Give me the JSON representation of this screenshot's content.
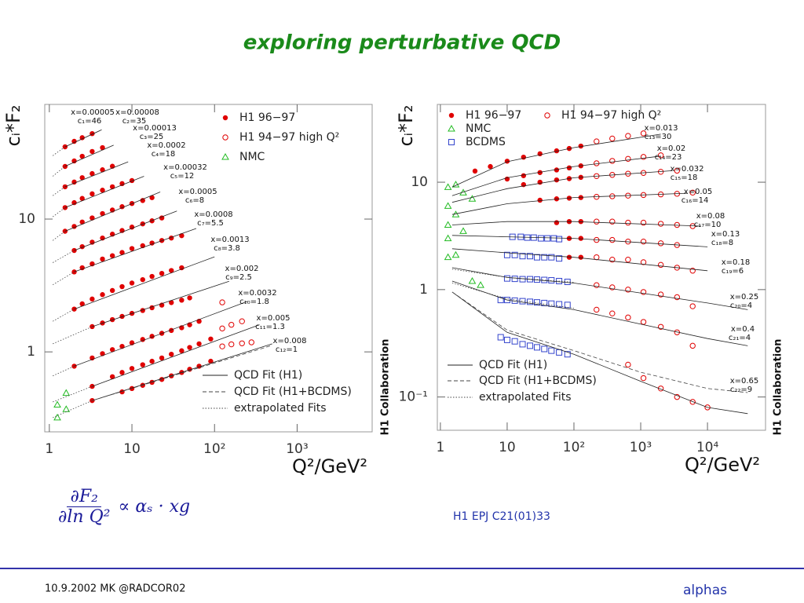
{
  "header": {
    "title": "exploring perturbative QCD"
  },
  "chart_data": [
    {
      "type": "scatter",
      "xscale": "log",
      "yscale": "log",
      "legend": "upper right",
      "ylabel": "cᵢ*F₂",
      "xlabel": "Q²/GeV²",
      "annotation": "H1 Collaboration",
      "xlim": [
        0.88,
        8100
      ],
      "ylim": [
        0.25,
        73
      ],
      "xticks": [
        1,
        10,
        {
          "value": 100,
          "label": "10²"
        },
        {
          "value": 1000,
          "label": "10³"
        }
      ],
      "yticks": [
        1,
        10
      ],
      "bin_labels": [
        [
          "x=0.00005",
          "c₁=46"
        ],
        [
          "x=0.00008",
          "c₂=35"
        ],
        [
          "x=0.00013",
          "c₃=25"
        ],
        [
          "x=0.0002",
          "c₄=18"
        ],
        [
          "x=0.00032",
          "c₅=12"
        ],
        [
          "x=0.0005",
          "c₆=8"
        ],
        [
          "x=0.0008",
          "c₇=5.5"
        ],
        [
          "x=0.0013",
          "c₈=3.8"
        ],
        [
          "x=0.002",
          "c₉=2.5"
        ],
        [
          "x=0.0032",
          "c₁₀=1.8"
        ],
        [
          "x=0.005",
          "c₁₁=1.3"
        ],
        [
          "x=0.008",
          "c₁₂=1"
        ]
      ],
      "series": [
        {
          "name": "H1 96−97",
          "marker": "filled-circle",
          "color": "#e00000",
          "x": [
            1.55,
            2,
            2.5,
            3.3,
            1.55,
            2,
            2.5,
            3.3,
            4.4,
            1.55,
            2,
            2.5,
            3.3,
            4.4,
            5.8,
            1.55,
            2,
            2.5,
            3.3,
            4.4,
            5.8,
            7.6,
            10,
            1.55,
            2,
            2.5,
            3.3,
            4.4,
            5.8,
            7.6,
            10,
            13.5,
            17.5,
            2,
            2.5,
            3.3,
            4.4,
            5.8,
            7.6,
            10,
            13.5,
            17.5,
            23,
            2,
            2.5,
            3.3,
            4.4,
            5.8,
            7.6,
            10,
            13.5,
            17.5,
            23,
            30,
            40,
            2,
            2.5,
            3.3,
            4.4,
            5.8,
            7.6,
            10,
            13.5,
            17.5,
            23,
            30,
            40,
            3.3,
            4.4,
            5.8,
            7.6,
            10,
            13.5,
            17.5,
            23,
            30,
            40,
            50,
            2,
            3.3,
            4.4,
            5.8,
            7.6,
            10,
            13.5,
            17.5,
            23,
            30,
            40,
            50,
            65,
            3.3,
            5.8,
            7.6,
            10,
            13.5,
            17.5,
            23,
            30,
            40,
            50,
            65,
            90,
            3.3,
            7.6,
            10,
            13.5,
            17.5,
            23,
            30,
            40,
            50,
            65,
            90
          ],
          "values": [
            35,
            38.5,
            41,
            44,
            24.9,
            27.4,
            29.7,
            32.3,
            34.5,
            17.5,
            19,
            20.5,
            22,
            23.5,
            25,
            12.2,
            13.3,
            14.3,
            15.5,
            16.5,
            17.5,
            18.5,
            19.5,
            8.1,
            8.8,
            9.5,
            10.2,
            11,
            11.7,
            12.4,
            13.1,
            13.8,
            14.5,
            5.8,
            6.2,
            6.7,
            7.2,
            7.7,
            8.2,
            8.7,
            9.2,
            9.7,
            10.2,
            4,
            4.3,
            4.6,
            5,
            5.3,
            5.6,
            6,
            6.3,
            6.6,
            6.9,
            7.2,
            7.5,
            2.1,
            2.3,
            2.5,
            2.7,
            2.9,
            3.1,
            3.3,
            3.5,
            3.7,
            3.9,
            4.1,
            4.3,
            1.55,
            1.65,
            1.75,
            1.85,
            1.95,
            2.05,
            2.15,
            2.25,
            2.35,
            2.45,
            2.55,
            0.78,
            0.9,
            0.97,
            1.04,
            1.1,
            1.17,
            1.24,
            1.31,
            1.38,
            1.45,
            1.52,
            1.6,
            1.7,
            0.55,
            0.65,
            0.7,
            0.75,
            0.8,
            0.85,
            0.9,
            0.96,
            1.02,
            1.08,
            1.15,
            1.25,
            0.43,
            0.5,
            0.53,
            0.56,
            0.59,
            0.62,
            0.66,
            0.7,
            0.74,
            0.78,
            0.85
          ]
        },
        {
          "name": "H1 94−97 high Q²",
          "marker": "open-circle",
          "color": "#e00000",
          "x": [
            124,
            124,
            160,
            215,
            124,
            160,
            215,
            280
          ],
          "values": [
            2.36,
            1.5,
            1.6,
            1.7,
            1.1,
            1.14,
            1.16,
            1.18
          ]
        },
        {
          "name": "NMC",
          "marker": "open-triangle",
          "color": "#22bb22",
          "x": [
            1.25,
            1.25,
            1.6,
            1.6
          ],
          "values": [
            0.4,
            0.32,
            0.37,
            0.49
          ]
        },
        {
          "name": "QCD Fit (H1)",
          "dash": "solid",
          "color": "#222222",
          "x": [
            1.55,
            4.3,
            null,
            1.55,
            6,
            null,
            1.55,
            9,
            null,
            1.55,
            14,
            null,
            1.55,
            22,
            null,
            2,
            35,
            null,
            2,
            60,
            null,
            2,
            100,
            null,
            3.3,
            150,
            null,
            2,
            250,
            null,
            3.3,
            350,
            null,
            3.3,
            500
          ],
          "values": [
            35,
            47,
            null,
            25,
            36,
            null,
            17.5,
            27,
            null,
            12.2,
            21,
            null,
            8.1,
            16,
            null,
            5.8,
            11.5,
            null,
            4,
            8.5,
            null,
            2.1,
            5.2,
            null,
            1.55,
            3.4,
            null,
            0.78,
            2.4,
            null,
            0.55,
            1.6,
            null,
            0.43,
            1.15
          ]
        },
        {
          "name": "QCD Fit (H1+BCDMS)",
          "dash": "dashed",
          "color": "#444444",
          "x": [
            3.3,
            500
          ],
          "values": [
            0.43,
            1.12
          ]
        },
        {
          "name": "extrapolated Fits",
          "dash": "dotted",
          "color": "#444444",
          "x": [
            1.1,
            1.55,
            null,
            1.1,
            1.55,
            null,
            1.1,
            1.55,
            null,
            1.1,
            1.55,
            null,
            1.1,
            1.55,
            null,
            1.1,
            2,
            null,
            1.1,
            2,
            null,
            1.1,
            2,
            null,
            1.1,
            3.3,
            null,
            1.1,
            2,
            null,
            1.1,
            3.3,
            null,
            1.1,
            3.3
          ],
          "values": [
            30,
            35,
            null,
            21,
            25,
            null,
            15,
            17.5,
            null,
            10.4,
            12.2,
            null,
            6.9,
            8.1,
            null,
            4.7,
            5.8,
            null,
            3.2,
            4,
            null,
            1.7,
            2.1,
            null,
            1.15,
            1.55,
            null,
            0.66,
            0.78,
            null,
            0.42,
            0.55,
            null,
            0.32,
            0.43
          ]
        }
      ]
    },
    {
      "type": "scatter",
      "xscale": "log",
      "yscale": "log",
      "legend": "upper left",
      "ylabel": "cᵢ*F₂",
      "xlabel": "Q²/GeV²",
      "annotation": "H1 Collaboration",
      "xlim": [
        0.9,
        74000
      ],
      "ylim": [
        0.049,
        53
      ],
      "xticks": [
        1,
        10,
        {
          "value": 100,
          "label": "10²"
        },
        {
          "value": 1000,
          "label": "10³"
        },
        {
          "value": 10000,
          "label": "10⁴"
        }
      ],
      "yticks": [
        {
          "value": 0.1,
          "label": "10⁻¹"
        },
        1,
        10
      ],
      "bin_labels": [
        [
          "x=0.013",
          "c₁₃=30"
        ],
        [
          "x=0.02",
          "c₁₄=23"
        ],
        [
          "x=0.032",
          "c₁₅=18"
        ],
        [
          "x=0.05",
          "c₁₆=14"
        ],
        [
          "x=0.08",
          "c₁₇=10"
        ],
        [
          "x=0.13",
          "c₁₈=8"
        ],
        [
          "x=0.18",
          "c₁₉=6"
        ],
        [
          "x=0.25",
          "c₂₀=4"
        ],
        [
          "x=0.4",
          "c₂₁=4"
        ],
        [
          "x=0.65",
          "c₂₂=9"
        ]
      ],
      "series": [
        {
          "name": "H1 96−97",
          "marker": "filled-circle",
          "color": "#e00000",
          "x": [
            3.3,
            5.6,
            10,
            17.6,
            31,
            55,
            85,
            127,
            10,
            17.6,
            31,
            55,
            85,
            127,
            17.6,
            31,
            55,
            85,
            127,
            31,
            55,
            85,
            127,
            55,
            85,
            127,
            85,
            127,
            85,
            127
          ],
          "values": [
            12.7,
            14,
            15.7,
            17.1,
            18.4,
            19.6,
            20.6,
            21.7,
            10.7,
            11.5,
            12.3,
            13,
            13.6,
            14.2,
            9.5,
            10,
            10.5,
            10.8,
            11.1,
            6.8,
            7,
            7.1,
            7.2,
            4.2,
            4.3,
            4.3,
            3,
            3,
            2,
            2
          ]
        },
        {
          "name": "H1 94−97 high Q²",
          "marker": "open-circle",
          "color": "#e00000",
          "x": [
            218,
            375,
            646,
            1100,
            218,
            375,
            646,
            1100,
            2000,
            218,
            375,
            646,
            1100,
            2000,
            3500,
            218,
            375,
            646,
            1100,
            2000,
            3500,
            6000,
            218,
            375,
            646,
            1100,
            2000,
            3500,
            6000,
            218,
            375,
            646,
            1100,
            2000,
            3500,
            218,
            375,
            646,
            1100,
            2000,
            3500,
            6000,
            218,
            375,
            646,
            1100,
            2000,
            3500,
            6000,
            218,
            375,
            646,
            1100,
            2000,
            3500,
            6000,
            646,
            1100,
            2000,
            3500,
            6000,
            10000
          ],
          "values": [
            24,
            25.5,
            27,
            28.5,
            15,
            15.8,
            16.5,
            17.2,
            17.8,
            11.4,
            11.7,
            12,
            12.2,
            12.5,
            12.8,
            7.3,
            7.4,
            7.5,
            7.6,
            7.7,
            7.8,
            8,
            4.3,
            4.3,
            4.2,
            4.2,
            4.1,
            4,
            3.9,
            2.9,
            2.9,
            2.8,
            2.8,
            2.7,
            2.6,
            2,
            1.9,
            1.9,
            1.8,
            1.7,
            1.6,
            1.5,
            1.1,
            1.05,
            1,
            0.95,
            0.9,
            0.85,
            0.7,
            0.65,
            0.6,
            0.55,
            0.5,
            0.45,
            0.4,
            0.3,
            0.2,
            0.15,
            0.12,
            0.1,
            0.09,
            0.08
          ]
        },
        {
          "name": "NMC",
          "marker": "open-triangle",
          "color": "#22bb22",
          "x": [
            1.3,
            1.3,
            1.3,
            1.3,
            1.3,
            1.7,
            1.7,
            1.7,
            2.2,
            2.2,
            3,
            3,
            4
          ],
          "values": [
            9,
            6,
            4,
            3,
            2,
            9.5,
            5,
            2.1,
            8,
            3.5,
            7,
            1.2,
            1.1
          ]
        },
        {
          "name": "BCDMS",
          "marker": "open-square",
          "color": "#3344cc",
          "x": [
            12,
            16,
            20,
            25,
            32,
            40,
            50,
            60,
            10,
            13,
            17,
            22,
            28,
            36,
            46,
            60,
            10,
            13,
            17,
            22,
            28,
            36,
            46,
            60,
            80,
            8,
            10,
            13,
            17,
            22,
            28,
            36,
            46,
            60,
            80,
            8,
            10,
            13,
            17,
            22,
            28,
            36,
            46,
            60,
            80
          ],
          "values": [
            3.1,
            3.1,
            3.05,
            3.05,
            3,
            3,
            3,
            2.95,
            2.1,
            2.1,
            2.05,
            2.05,
            2,
            2,
            2,
            1.95,
            1.27,
            1.26,
            1.25,
            1.25,
            1.24,
            1.23,
            1.22,
            1.2,
            1.18,
            0.8,
            0.8,
            0.79,
            0.78,
            0.77,
            0.76,
            0.75,
            0.74,
            0.73,
            0.72,
            0.36,
            0.34,
            0.33,
            0.31,
            0.3,
            0.29,
            0.28,
            0.27,
            0.26,
            0.25
          ]
        },
        {
          "name": "QCD Fit (H1)",
          "dash": "solid",
          "color": "#222222",
          "x": [
            1.5,
            10,
            100,
            2000,
            null,
            1.5,
            10,
            100,
            2000,
            null,
            1.5,
            10,
            100,
            3000,
            null,
            1.5,
            10,
            100,
            5000,
            null,
            1.5,
            10,
            100,
            8000,
            null,
            1.5,
            10,
            100,
            10000,
            null,
            1.5,
            10,
            100,
            10000,
            null,
            1.5,
            10,
            100,
            10000,
            40000,
            null,
            1.5,
            10,
            100,
            10000,
            40000,
            null,
            1.5,
            10,
            100,
            1000,
            10000,
            40000
          ],
          "values": [
            9,
            15.5,
            21,
            28,
            null,
            7.5,
            11,
            14,
            17.5,
            null,
            6.5,
            8.7,
            11,
            12.8,
            null,
            5,
            6.3,
            7.2,
            7.9,
            null,
            4,
            4.3,
            4.3,
            3.9,
            null,
            3.2,
            3.1,
            3,
            2.5,
            null,
            2.4,
            2.2,
            2,
            1.5,
            null,
            1.6,
            1.3,
            1.15,
            0.75,
            0.65,
            null,
            1.2,
            0.8,
            0.65,
            0.35,
            0.3,
            null,
            0.95,
            0.4,
            0.25,
            0.14,
            0.08,
            0.07
          ]
        },
        {
          "name": "QCD Fit (H1+BCDMS)",
          "dash": "dashed",
          "color": "#444444",
          "x": [
            1.5,
            10,
            100,
            1000,
            10000,
            40000
          ],
          "values": [
            0.95,
            0.42,
            0.27,
            0.17,
            0.12,
            0.11
          ]
        },
        {
          "name": "extrapolated Fits",
          "dash": "dotted",
          "color": "#444444",
          "x": [
            1.5,
            10,
            100,
            null,
            1.5,
            10,
            100
          ],
          "values": [
            1.55,
            1.3,
            1.17,
            null,
            1.15,
            0.82,
            0.67
          ]
        }
      ]
    }
  ],
  "formula": {
    "numerator": "∂F₂",
    "denominator": "∂ln Q²",
    "rest": "∝ αₛ · xg"
  },
  "citation": "H1 EPJ C21(01)33",
  "footer": {
    "left": "10.9.2002 MK @RADCOR02",
    "right": "alphas"
  }
}
